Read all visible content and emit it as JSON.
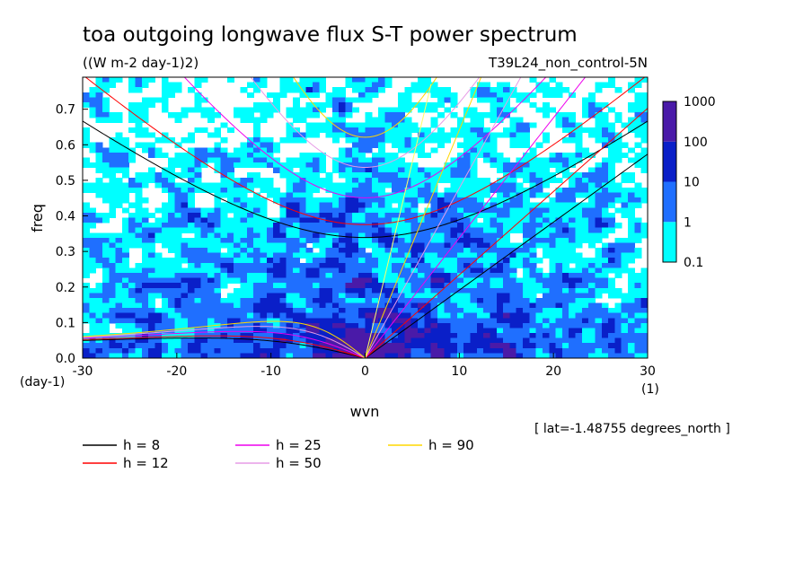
{
  "title": "toa outgoing longwave flux S-T power spectrum",
  "units": "((W m-2 day-1)2)",
  "dataset": "T39L24_non_control-5N",
  "annotation": "[ lat=-1.48755 degrees_north ]",
  "colors": {
    "band_0_1_to_1": "#00ffff",
    "band_1_to_10": "#1f6fff",
    "band_10_to_100": "#0a1fc8",
    "band_100_to_1000": "#4a1aa8",
    "h8": "#000000",
    "h12": "#ff0000",
    "h25": "#ee00ee",
    "h50": "#e69be6",
    "h90": "#ffd700",
    "zero_line": "#ffff66"
  },
  "chart_data": {
    "type": "heatmap",
    "title": "toa outgoing longwave flux S-T power spectrum",
    "subtitle": "((W m-2 day-1)2)",
    "xlabel": "wvn",
    "xunits": "(1)",
    "ylabel": "freq",
    "yunits": "(day-1)",
    "xlim": [
      -30,
      30
    ],
    "ylim": [
      0,
      0.79
    ],
    "xticks": [
      -30,
      -20,
      -10,
      0,
      10,
      20,
      30
    ],
    "xtick_labels": [
      "-30",
      "-20",
      "-10",
      "0",
      "10",
      "20",
      "30"
    ],
    "yticks": [
      0.0,
      0.1,
      0.2,
      0.3,
      0.4,
      0.5,
      0.6,
      0.7
    ],
    "ytick_labels": [
      "0.0",
      "0.1",
      "0.2",
      "0.3",
      "0.4",
      "0.5",
      "0.6",
      "0.7"
    ],
    "colorbar": {
      "scale": "log",
      "levels": [
        0.1,
        1,
        10,
        100,
        1000
      ],
      "labels": [
        "0.1",
        "1",
        "10",
        "100",
        "1000"
      ]
    },
    "field_description_values": {
      "power_below_0_1_typical_upper_region": "white",
      "power_0_1_to_1_typical_mid": "cyan",
      "power_1_to_10_low_freq": "blue",
      "power_10_to_100_near_origin": "dark blue"
    },
    "dispersion_curves": [
      {
        "name": "h =  8",
        "label": "h =  8",
        "h": 8
      },
      {
        "name": "h = 12",
        "label": "h = 12",
        "h": 12
      },
      {
        "name": "h = 25",
        "label": "h = 25",
        "h": 25
      },
      {
        "name": "h = 50",
        "label": "h = 50",
        "h": 50
      },
      {
        "name": "h = 90",
        "label": "h = 90",
        "h": 90
      }
    ],
    "legend_placement": "bottom",
    "grid": false
  }
}
